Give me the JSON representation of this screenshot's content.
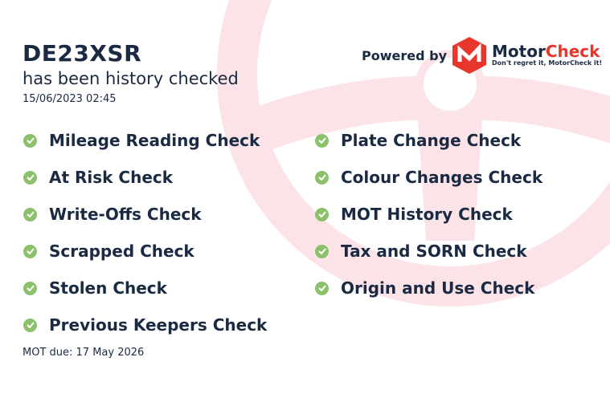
{
  "registration": "DE23XSR",
  "subtitle": "has been history checked",
  "datetime": "15/06/2023 02:45",
  "left_checks": [
    "Mileage Reading Check",
    "At Risk Check",
    "Write-Offs Check",
    "Scrapped Check",
    "Stolen Check",
    "Previous Keepers Check"
  ],
  "right_checks": [
    "Plate Change Check",
    "Colour Changes Check",
    "MOT History Check",
    "Tax and SORN Check",
    "Origin and Use Check"
  ],
  "mot_due": "MOT due: 17 May 2026",
  "powered_by": "Powered by",
  "brand": {
    "part1": "Motor",
    "part2": "Check",
    "tagline": "Don't regret it, MotorCheck it!"
  },
  "colors": {
    "check": "#8cc06b",
    "text": "#1b2a43",
    "brand_red": "#e8362c",
    "watermark": "#fbe6ea"
  }
}
